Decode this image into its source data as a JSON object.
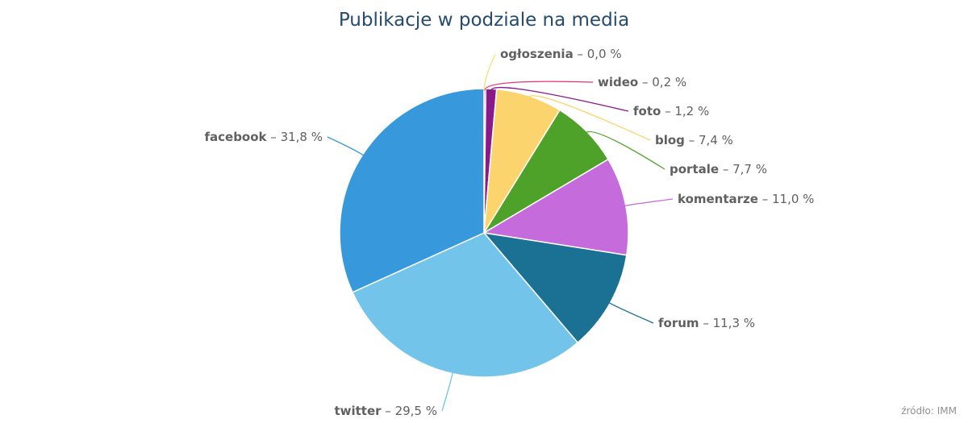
{
  "chart_data": {
    "type": "pie",
    "title": "Publikacje w podziale na media",
    "source": "źródło: IMM",
    "slices": [
      {
        "name": "ogłoszenia",
        "value_label": "0,0 %",
        "value": 0.0,
        "color": "#f5e07a"
      },
      {
        "name": "wideo",
        "value_label": "0,2 %",
        "value": 0.2,
        "color": "#e8336d"
      },
      {
        "name": "foto",
        "value_label": "1,2 %",
        "value": 1.2,
        "color": "#8a1a8a"
      },
      {
        "name": "blog",
        "value_label": "7,4 %",
        "value": 7.4,
        "color": "#fbd46d"
      },
      {
        "name": "portale",
        "value_label": "7,7 %",
        "value": 7.7,
        "color": "#4fa229"
      },
      {
        "name": "komentarze",
        "value_label": "11,0 %",
        "value": 11.0,
        "color": "#c66bdc"
      },
      {
        "name": "forum",
        "value_label": "11,3 %",
        "value": 11.3,
        "color": "#1b7194"
      },
      {
        "name": "twitter",
        "value_label": "29,5 %",
        "value": 29.5,
        "color": "#73c4ea"
      },
      {
        "name": "facebook",
        "value_label": "31,8 %",
        "value": 31.8,
        "color": "#3898dc"
      }
    ]
  }
}
